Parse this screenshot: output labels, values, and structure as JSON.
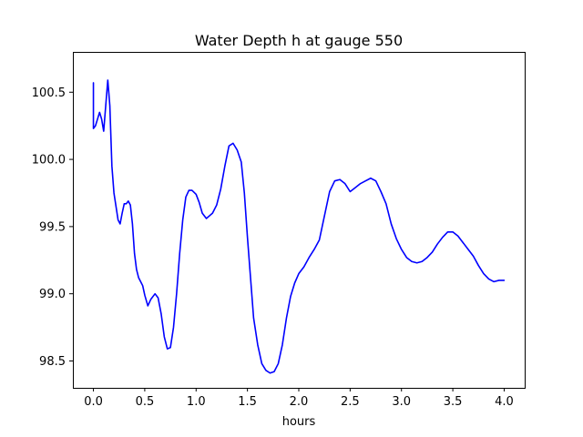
{
  "chart_data": {
    "type": "line",
    "title": "Water Depth h at gauge 550",
    "xlabel": "hours",
    "ylabel": "",
    "xlim": [
      -0.2,
      4.2
    ],
    "ylim": [
      98.3,
      100.8
    ],
    "x_ticks": [
      0.0,
      0.5,
      1.0,
      1.5,
      2.0,
      2.5,
      3.0,
      3.5,
      4.0
    ],
    "x_tick_labels": [
      "0.0",
      "0.5",
      "1.0",
      "1.5",
      "2.0",
      "2.5",
      "3.0",
      "3.5",
      "4.0"
    ],
    "y_ticks": [
      98.5,
      99.0,
      99.5,
      100.0,
      100.5
    ],
    "y_tick_labels": [
      "98.5",
      "99.0",
      "99.5",
      "100.0",
      "100.5"
    ],
    "grid": false,
    "series": [
      {
        "color": "#0000ff",
        "x": [
          0.0,
          0.0,
          0.02,
          0.04,
          0.06,
          0.08,
          0.1,
          0.12,
          0.14,
          0.16,
          0.18,
          0.2,
          0.22,
          0.24,
          0.26,
          0.28,
          0.3,
          0.32,
          0.34,
          0.36,
          0.38,
          0.4,
          0.42,
          0.44,
          0.46,
          0.48,
          0.5,
          0.53,
          0.56,
          0.6,
          0.63,
          0.66,
          0.69,
          0.72,
          0.75,
          0.78,
          0.81,
          0.84,
          0.87,
          0.9,
          0.93,
          0.96,
          1.0,
          1.03,
          1.06,
          1.1,
          1.13,
          1.16,
          1.2,
          1.24,
          1.28,
          1.32,
          1.36,
          1.4,
          1.44,
          1.47,
          1.5,
          1.53,
          1.56,
          1.6,
          1.64,
          1.68,
          1.72,
          1.76,
          1.8,
          1.84,
          1.88,
          1.92,
          1.96,
          2.0,
          2.05,
          2.1,
          2.15,
          2.2,
          2.25,
          2.3,
          2.35,
          2.4,
          2.45,
          2.5,
          2.55,
          2.6,
          2.65,
          2.7,
          2.75,
          2.8,
          2.85,
          2.9,
          2.95,
          3.0,
          3.05,
          3.1,
          3.15,
          3.2,
          3.25,
          3.3,
          3.35,
          3.4,
          3.45,
          3.5,
          3.55,
          3.6,
          3.65,
          3.7,
          3.75,
          3.8,
          3.85,
          3.9,
          3.95,
          4.0
        ],
        "y": [
          100.57,
          100.23,
          100.25,
          100.3,
          100.35,
          100.3,
          100.21,
          100.4,
          100.59,
          100.4,
          99.95,
          99.75,
          99.65,
          99.55,
          99.52,
          99.6,
          99.67,
          99.67,
          99.69,
          99.66,
          99.52,
          99.3,
          99.18,
          99.12,
          99.09,
          99.06,
          98.99,
          98.91,
          98.96,
          99.0,
          98.97,
          98.85,
          98.68,
          98.59,
          98.6,
          98.75,
          99.0,
          99.3,
          99.55,
          99.72,
          99.77,
          99.77,
          99.74,
          99.68,
          99.6,
          99.56,
          99.58,
          99.6,
          99.66,
          99.78,
          99.95,
          100.1,
          100.12,
          100.07,
          99.98,
          99.75,
          99.42,
          99.12,
          98.82,
          98.62,
          98.48,
          98.43,
          98.41,
          98.42,
          98.48,
          98.62,
          98.82,
          98.98,
          99.08,
          99.15,
          99.2,
          99.27,
          99.33,
          99.4,
          99.58,
          99.76,
          99.84,
          99.85,
          99.82,
          99.76,
          99.79,
          99.82,
          99.84,
          99.86,
          99.84,
          99.76,
          99.67,
          99.52,
          99.41,
          99.33,
          99.27,
          99.24,
          99.23,
          99.24,
          99.27,
          99.31,
          99.37,
          99.42,
          99.46,
          99.46,
          99.43,
          99.38,
          99.33,
          99.28,
          99.21,
          99.15,
          99.11,
          99.09,
          99.1,
          99.1
        ]
      }
    ]
  }
}
